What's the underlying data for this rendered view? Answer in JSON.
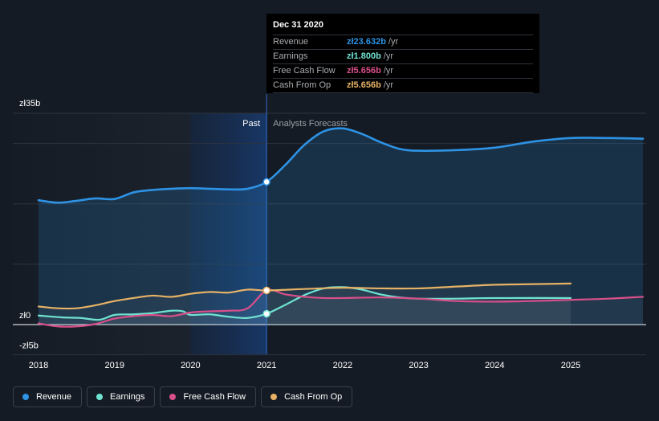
{
  "chart_data": {
    "type": "line",
    "currency": "zł",
    "y_axis": {
      "ylim": [
        -5,
        35
      ],
      "tick_labels": [
        {
          "value": 35,
          "label": "zł35b"
        },
        {
          "value": 0,
          "label": "zł0"
        },
        {
          "value": -5,
          "label": "-zł5b"
        }
      ],
      "gridlines": [
        35,
        30,
        20,
        10,
        0,
        -5
      ]
    },
    "x_axis": {
      "xlim": [
        2017.85,
        2025.95
      ],
      "ticks": [
        {
          "value": 2018,
          "label": "2018"
        },
        {
          "value": 2019,
          "label": "2019"
        },
        {
          "value": 2020,
          "label": "2020"
        },
        {
          "value": 2021,
          "label": "2021"
        },
        {
          "value": 2022,
          "label": "2022"
        },
        {
          "value": 2023,
          "label": "2023"
        },
        {
          "value": 2024,
          "label": "2024"
        },
        {
          "value": 2025,
          "label": "2025"
        }
      ]
    },
    "past_label": "Past",
    "forecast_label": "Analysts Forecasts",
    "divider_x": 2021.0,
    "highlight_range": [
      2020.0,
      2021.0
    ],
    "series": [
      {
        "name": "Revenue",
        "color": "#2e93e5",
        "fill": true,
        "points": [
          [
            2018.0,
            20.6
          ],
          [
            2018.25,
            20.2
          ],
          [
            2018.5,
            20.5
          ],
          [
            2018.75,
            20.9
          ],
          [
            2019.0,
            20.8
          ],
          [
            2019.25,
            21.9
          ],
          [
            2019.5,
            22.3
          ],
          [
            2019.75,
            22.5
          ],
          [
            2020.0,
            22.6
          ],
          [
            2020.25,
            22.5
          ],
          [
            2020.5,
            22.4
          ],
          [
            2020.75,
            22.5
          ],
          [
            2021.0,
            23.632
          ],
          [
            2021.25,
            26.5
          ],
          [
            2021.5,
            29.8
          ],
          [
            2021.75,
            32.0
          ],
          [
            2022.0,
            32.5
          ],
          [
            2022.25,
            31.6
          ],
          [
            2022.5,
            30.2
          ],
          [
            2022.75,
            29.1
          ],
          [
            2023.0,
            28.8
          ],
          [
            2023.5,
            28.9
          ],
          [
            2024.0,
            29.3
          ],
          [
            2024.5,
            30.3
          ],
          [
            2025.0,
            30.9
          ],
          [
            2025.5,
            30.9
          ],
          [
            2025.95,
            30.8
          ]
        ]
      },
      {
        "name": "Earnings",
        "color": "#6fe3d1",
        "fill": false,
        "points": [
          [
            2018.0,
            1.5
          ],
          [
            2018.3,
            1.2
          ],
          [
            2018.55,
            1.1
          ],
          [
            2018.8,
            0.8
          ],
          [
            2019.0,
            1.6
          ],
          [
            2019.25,
            1.7
          ],
          [
            2019.5,
            1.9
          ],
          [
            2019.75,
            2.3
          ],
          [
            2019.9,
            2.2
          ],
          [
            2020.0,
            1.6
          ],
          [
            2020.25,
            1.7
          ],
          [
            2020.5,
            1.3
          ],
          [
            2020.75,
            1.1
          ],
          [
            2021.0,
            1.8
          ],
          [
            2021.25,
            3.3
          ],
          [
            2021.5,
            4.9
          ],
          [
            2021.75,
            6.0
          ],
          [
            2022.0,
            6.2
          ],
          [
            2022.25,
            5.8
          ],
          [
            2022.5,
            5.0
          ],
          [
            2022.75,
            4.5
          ],
          [
            2023.0,
            4.3
          ],
          [
            2023.5,
            4.3
          ],
          [
            2024.0,
            4.4
          ],
          [
            2025.0,
            4.4
          ]
        ]
      },
      {
        "name": "Free Cash Flow",
        "color": "#d94f8a",
        "fill": false,
        "points": [
          [
            2018.0,
            0.2
          ],
          [
            2018.25,
            -0.3
          ],
          [
            2018.5,
            -0.3
          ],
          [
            2018.75,
            0.1
          ],
          [
            2019.0,
            1.0
          ],
          [
            2019.25,
            1.4
          ],
          [
            2019.5,
            1.6
          ],
          [
            2019.75,
            1.4
          ],
          [
            2020.0,
            2.0
          ],
          [
            2020.25,
            2.2
          ],
          [
            2020.5,
            2.3
          ],
          [
            2020.75,
            2.7
          ],
          [
            2021.0,
            5.656
          ],
          [
            2021.25,
            5.0
          ],
          [
            2021.5,
            4.6
          ],
          [
            2021.75,
            4.4
          ],
          [
            2022.0,
            4.4
          ],
          [
            2022.5,
            4.5
          ],
          [
            2023.0,
            4.3
          ],
          [
            2023.5,
            3.9
          ],
          [
            2024.0,
            3.8
          ],
          [
            2024.5,
            3.9
          ],
          [
            2025.0,
            4.1
          ],
          [
            2025.5,
            4.3
          ],
          [
            2025.95,
            4.6
          ]
        ]
      },
      {
        "name": "Cash From Op",
        "color": "#e7b266",
        "fill": false,
        "points": [
          [
            2018.0,
            3.0
          ],
          [
            2018.25,
            2.7
          ],
          [
            2018.5,
            2.7
          ],
          [
            2018.75,
            3.2
          ],
          [
            2019.0,
            3.9
          ],
          [
            2019.25,
            4.4
          ],
          [
            2019.5,
            4.8
          ],
          [
            2019.75,
            4.6
          ],
          [
            2020.0,
            5.1
          ],
          [
            2020.25,
            5.4
          ],
          [
            2020.5,
            5.3
          ],
          [
            2020.75,
            5.8
          ],
          [
            2021.0,
            5.656
          ],
          [
            2021.5,
            5.9
          ],
          [
            2022.0,
            6.1
          ],
          [
            2022.5,
            6.0
          ],
          [
            2023.0,
            6.0
          ],
          [
            2023.5,
            6.3
          ],
          [
            2024.0,
            6.6
          ],
          [
            2024.5,
            6.7
          ],
          [
            2025.0,
            6.8
          ]
        ]
      }
    ],
    "markers": [
      {
        "series": "Revenue",
        "x": 2021.0,
        "y": 23.632
      },
      {
        "series": "Earnings",
        "x": 2021.0,
        "y": 1.8
      },
      {
        "series": "Cash From Op",
        "x": 2021.0,
        "y": 5.656
      }
    ]
  },
  "tooltip": {
    "title": "Dec 31 2020",
    "rows": [
      {
        "name": "Revenue",
        "value": "zł23.632b",
        "unit": "/yr",
        "color": "#2e93e5"
      },
      {
        "name": "Earnings",
        "value": "zł1.800b",
        "unit": "/yr",
        "color": "#6fe3d1"
      },
      {
        "name": "Free Cash Flow",
        "value": "zł5.656b",
        "unit": "/yr",
        "color": "#d94f8a"
      },
      {
        "name": "Cash From Op",
        "value": "zł5.656b",
        "unit": "/yr",
        "color": "#e7b266"
      }
    ]
  },
  "legend": [
    {
      "label": "Revenue",
      "color": "#2e93e5"
    },
    {
      "label": "Earnings",
      "color": "#6fe3d1"
    },
    {
      "label": "Free Cash Flow",
      "color": "#d94f8a"
    },
    {
      "label": "Cash From Op",
      "color": "#e7b266"
    }
  ]
}
